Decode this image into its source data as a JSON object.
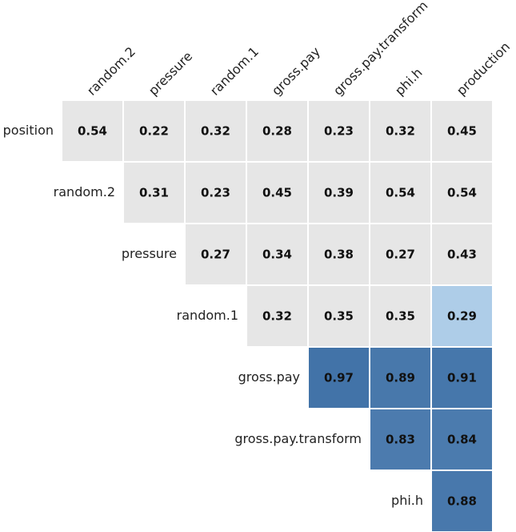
{
  "chart_data": {
    "type": "heatmap",
    "title": "",
    "columns": [
      "random.2",
      "pressure",
      "random.1",
      "gross.pay",
      "gross.pay.transform",
      "phi.h",
      "production"
    ],
    "rows": [
      "position",
      "random.2",
      "pressure",
      "random.1",
      "gross.pay",
      "gross.pay.transform",
      "phi.h"
    ],
    "values": [
      [
        0.54,
        0.22,
        0.32,
        0.28,
        0.23,
        0.32,
        0.45
      ],
      [
        null,
        0.31,
        0.23,
        0.45,
        0.39,
        0.54,
        0.54
      ],
      [
        null,
        null,
        0.27,
        0.34,
        0.38,
        0.27,
        0.43
      ],
      [
        null,
        null,
        null,
        0.32,
        0.35,
        0.35,
        0.29
      ],
      [
        null,
        null,
        null,
        null,
        0.97,
        0.89,
        0.91
      ],
      [
        null,
        null,
        null,
        null,
        null,
        0.83,
        0.84
      ],
      [
        null,
        null,
        null,
        null,
        null,
        null,
        0.88
      ]
    ],
    "labels": [
      [
        "0.54",
        "0.22",
        "0.32",
        "0.28",
        "0.23",
        "0.32",
        "0.45"
      ],
      [
        null,
        "0.31",
        "0.23",
        "0.45",
        "0.39",
        "0.54",
        "0.54"
      ],
      [
        null,
        null,
        "0.27",
        "0.34",
        "0.38",
        "0.27",
        "0.43"
      ],
      [
        null,
        null,
        null,
        "0.32",
        "0.35",
        "0.35",
        "0.29"
      ],
      [
        null,
        null,
        null,
        null,
        "0.97",
        "0.89",
        "0.91"
      ],
      [
        null,
        null,
        null,
        null,
        null,
        "0.83",
        "0.84"
      ],
      [
        null,
        null,
        null,
        null,
        null,
        null,
        "0.88"
      ]
    ],
    "highlighted": [
      [
        false,
        false,
        false,
        false,
        false,
        false,
        false
      ],
      [
        false,
        false,
        false,
        false,
        false,
        false,
        false
      ],
      [
        false,
        false,
        false,
        false,
        false,
        false,
        false
      ],
      [
        false,
        false,
        false,
        false,
        false,
        false,
        true
      ],
      [
        false,
        false,
        false,
        false,
        true,
        true,
        true
      ],
      [
        false,
        false,
        false,
        false,
        false,
        true,
        true
      ],
      [
        false,
        false,
        false,
        false,
        false,
        false,
        true
      ]
    ],
    "colors": {
      "neutral": "#e6e6e6",
      "light": "#aecde8",
      "dark": "#4273a8",
      "grid": "#ffffff"
    },
    "legend": "none",
    "grid": true
  }
}
